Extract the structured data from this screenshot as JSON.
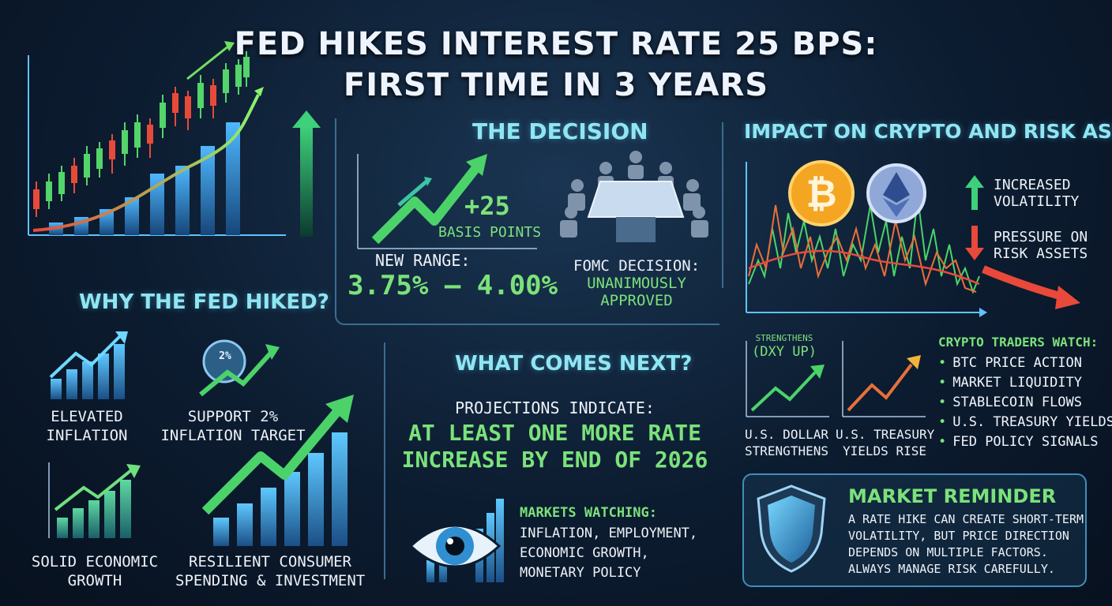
{
  "title": {
    "line1": "FED HIKES INTEREST RATE 25 BPS:",
    "line2": "FIRST TIME IN 3 YEARS"
  },
  "decision": {
    "heading": "THE DECISION",
    "hike": "+25",
    "hike_unit": "BASIS POINTS",
    "range_label": "NEW RANGE:",
    "range_value": "3.75% – 4.00%",
    "fomc_label": "FOMC DECISION:",
    "fomc_value_1": "UNANIMOUSLY",
    "fomc_value_2": "APPROVED"
  },
  "why": {
    "heading": "WHY THE FED HIKED?",
    "badge": "2%",
    "items": [
      {
        "line1": "ELEVATED",
        "line2": "INFLATION"
      },
      {
        "line1": "SUPPORT 2%",
        "line2": "INFLATION TARGET"
      },
      {
        "line1": "SOLID ECONOMIC",
        "line2": "GROWTH"
      },
      {
        "line1": "RESILIENT CONSUMER",
        "line2": "SPENDING & INVESTMENT"
      }
    ]
  },
  "next": {
    "heading": "WHAT COMES NEXT?",
    "projections": "PROJECTIONS INDICATE:",
    "forecast_1": "AT LEAST ONE MORE RATE",
    "forecast_2": "INCREASE BY END OF 2026",
    "watching_label": "MARKETS WATCHING:",
    "watching_lines": [
      "INFLATION, EMPLOYMENT,",
      "ECONOMIC GROWTH,",
      "MONETARY POLICY"
    ]
  },
  "impact": {
    "heading": "IMPACT ON CRYPTO AND RISK ASSETS",
    "up_label_1": "INCREASED",
    "up_label_2": "VOLATILITY",
    "down_label_1": "PRESSURE ON",
    "down_label_2": "RISK ASSETS",
    "dxy_small": "STRENGTHENS",
    "dxy": "(DXY UP)",
    "dollar_1": "U.S. DOLLAR",
    "dollar_2": "STRENGTHENS",
    "treasury_1": "U.S. TREASURY",
    "treasury_2": "YIELDS RISE",
    "watch_heading": "CRYPTO TRADERS WATCH:",
    "watch_items": [
      "BTC PRICE ACTION",
      "MARKET LIQUIDITY",
      "STABLECOIN FLOWS",
      "U.S. TREASURY YIELDS",
      "FED POLICY SIGNALS"
    ]
  },
  "reminder": {
    "heading": "MARKET REMINDER",
    "lines": [
      "A RATE HIKE CAN CREATE SHORT-TERM",
      "VOLATILITY, BUT PRICE DIRECTION",
      "DEPENDS ON MULTIPLE FACTORS.",
      "ALWAYS MANAGE RISK CAREFULLY."
    ]
  },
  "icons": [
    "candlestick-chart-icon",
    "bar-trend-icon",
    "upward-trend-arrow-icon",
    "boardroom-icon",
    "eye-icon",
    "bitcoin-icon",
    "ethereum-icon",
    "shield-icon",
    "arrow-up-icon",
    "arrow-down-icon"
  ],
  "colors": {
    "accent_cyan": "#8fe6f2",
    "accent_green": "#7be27a",
    "alert_red": "#e8493a",
    "bg": "#0c1c30"
  }
}
